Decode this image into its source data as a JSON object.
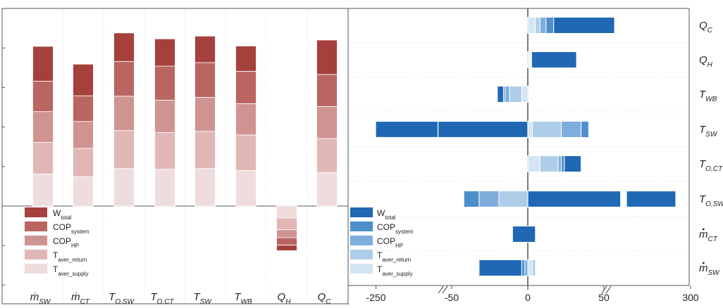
{
  "chart_data": [
    {
      "type": "bar",
      "stacked": true,
      "categories": [
        {
          "main": "ṁ",
          "sub": "SW"
        },
        {
          "main": "ṁ",
          "sub": "CT"
        },
        {
          "main": "T",
          "sub": "O,SW"
        },
        {
          "main": "T",
          "sub": "O,CT"
        },
        {
          "main": "T",
          "sub": "SW"
        },
        {
          "main": "T",
          "sub": "WB"
        },
        {
          "main": "Q",
          "sub": "H"
        },
        {
          "main": "Q",
          "sub": "C"
        }
      ],
      "series": [
        {
          "name": "T_aver_supply",
          "label": "T",
          "sub": "aver_supply",
          "color": "#efdddd",
          "values": [
            0.81,
            0.74,
            0.95,
            0.93,
            0.95,
            0.9,
            -0.3,
            0.85
          ]
        },
        {
          "name": "T_aver_return",
          "label": "T",
          "sub": "aver_return",
          "color": "#e1b7b6",
          "values": [
            0.8,
            0.72,
            0.96,
            0.93,
            0.94,
            0.9,
            -0.3,
            0.86
          ]
        },
        {
          "name": "COP_HP",
          "label": "COP",
          "sub": "HP",
          "color": "#cf9492",
          "values": [
            0.78,
            0.68,
            0.87,
            0.82,
            0.86,
            0.79,
            -0.2,
            0.81
          ]
        },
        {
          "name": "COP_system",
          "label": "COP",
          "sub": "system",
          "color": "#b96663",
          "values": [
            0.77,
            0.65,
            0.88,
            0.86,
            0.88,
            0.82,
            -0.19,
            0.81
          ]
        },
        {
          "name": "W_total",
          "label": "W",
          "sub": "total",
          "color": "#a6403d",
          "values": [
            0.88,
            0.8,
            0.72,
            0.69,
            0.67,
            0.64,
            -0.14,
            0.87
          ]
        }
      ],
      "ylim": [
        -2,
        5
      ],
      "yticks": [
        "-2",
        "-1",
        "0",
        "1",
        "2",
        "3",
        "4",
        "5"
      ],
      "legend": "bottom-left"
    },
    {
      "type": "bar",
      "orientation": "horizontal",
      "stacked": true,
      "categories": [
        {
          "main": "Q",
          "sub": "C",
          "dot": false
        },
        {
          "main": "Q",
          "sub": "H",
          "dot": false
        },
        {
          "main": "T",
          "sub": "WB",
          "dot": false
        },
        {
          "main": "T",
          "sub": "SW",
          "dot": false
        },
        {
          "main": "T",
          "sub": "O,CT",
          "dot": false
        },
        {
          "main": "T",
          "sub": "O,SW",
          "dot": false
        },
        {
          "main": "m",
          "sub": "CT",
          "dot": true
        },
        {
          "main": "m",
          "sub": "SW",
          "dot": true
        }
      ],
      "series": [
        {
          "name": "T_aver_supply",
          "label": "T",
          "sub": "aver_supply",
          "color": "#d6e5f3",
          "segments": [
            [
              0,
              5
            ],
            [
              0,
              1
            ],
            [
              -4,
              0
            ],
            [
              0,
              3
            ],
            [
              0,
              8
            ],
            [
              0,
              2
            ],
            [
              -3,
              0
            ],
            [
              0,
              3
            ]
          ]
        },
        {
          "name": "T_aver_return",
          "label": "T",
          "sub": "aver_return",
          "color": "#aecde9",
          "segments": [
            [
              5,
              8
            ],
            [
              1,
              1.5
            ],
            [
              -12,
              -4
            ],
            [
              3,
              22
            ],
            [
              8,
              20
            ],
            [
              -19,
              2
            ],
            [
              -8,
              -3
            ],
            [
              3,
              5
            ]
          ]
        },
        {
          "name": "COP_HP",
          "label": "COP",
          "sub": "HP",
          "color": "#7eaedc",
          "segments": [
            [
              8,
              12
            ],
            [
              1.5,
              2
            ],
            [
              -15,
              -12
            ],
            [
              22,
              35
            ],
            [
              20,
              22
            ],
            [
              -32,
              -19
            ],
            [
              -9,
              -8
            ],
            [
              -2,
              0
            ]
          ]
        },
        {
          "name": "COP_system",
          "label": "COP",
          "sub": "system",
          "color": "#4e8ecb",
          "segments": [
            [
              12,
              17
            ],
            [
              2,
              2.5
            ],
            [
              -16,
              -15
            ],
            [
              35,
              40
            ],
            [
              22,
              24
            ],
            [
              -42,
              -32
            ],
            [
              -10,
              -9
            ],
            [
              -4,
              -2
            ]
          ]
        },
        {
          "name": "W_total",
          "label": "W",
          "sub": "total",
          "color": "#2068b4",
          "segments": [
            [
              17,
              57
            ],
            [
              2.5,
              32
            ],
            [
              -20,
              -16
            ],
            [
              -251,
              -59
            ],
            [
              24,
              35
            ],
            [
              0,
              295
            ],
            [
              -10,
              5
            ],
            [
              -32,
              -4
            ]
          ]
        }
      ],
      "xticks": [
        "-250",
        "-50",
        "0",
        "50",
        "300"
      ],
      "axis_break": [
        "-60..-240",
        "70..240"
      ],
      "legend": "bottom-left"
    }
  ]
}
